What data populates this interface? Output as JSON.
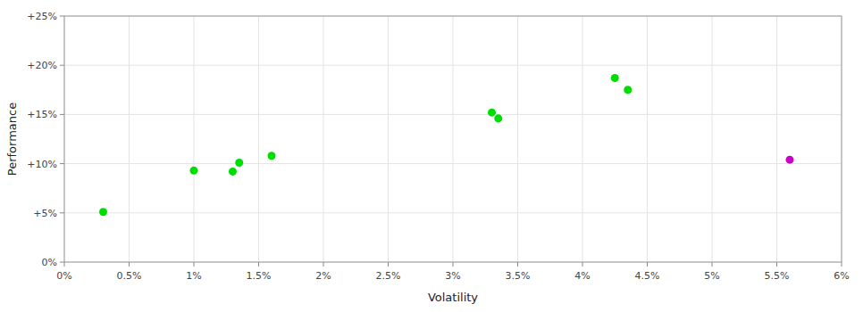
{
  "chart_data": {
    "type": "scatter",
    "x": [
      0.003,
      0.01,
      0.013,
      0.0135,
      0.016,
      0.033,
      0.0335,
      0.0425,
      0.0435,
      0.056
    ],
    "values": [
      0.051,
      0.093,
      0.092,
      0.101,
      0.108,
      0.152,
      0.146,
      0.187,
      0.175,
      0.104
    ],
    "colors": [
      "#00dd00",
      "#00dd00",
      "#00dd00",
      "#00dd00",
      "#00dd00",
      "#00dd00",
      "#00dd00",
      "#00dd00",
      "#00dd00",
      "#cc00cc"
    ],
    "xlabel": "Volatility",
    "ylabel": "Performance",
    "xlim": [
      0.0,
      0.06
    ],
    "ylim": [
      0.0,
      0.25
    ],
    "xticks": [
      {
        "value": 0.0,
        "label": "0%"
      },
      {
        "value": 0.005,
        "label": "0.5%"
      },
      {
        "value": 0.01,
        "label": "1%"
      },
      {
        "value": 0.015,
        "label": "1.5%"
      },
      {
        "value": 0.02,
        "label": "2%"
      },
      {
        "value": 0.025,
        "label": "2.5%"
      },
      {
        "value": 0.03,
        "label": "3%"
      },
      {
        "value": 0.035,
        "label": "3.5%"
      },
      {
        "value": 0.04,
        "label": "4%"
      },
      {
        "value": 0.045,
        "label": "4.5%"
      },
      {
        "value": 0.05,
        "label": "5%"
      },
      {
        "value": 0.055,
        "label": "5.5%"
      },
      {
        "value": 0.06,
        "label": "6%"
      }
    ],
    "yticks": [
      {
        "value": 0.0,
        "label": "0%"
      },
      {
        "value": 0.05,
        "label": "+5%"
      },
      {
        "value": 0.1,
        "label": "+10%"
      },
      {
        "value": 0.15,
        "label": "+15%"
      },
      {
        "value": 0.2,
        "label": "+20%"
      },
      {
        "value": 0.25,
        "label": "+25%"
      }
    ],
    "grid": true
  }
}
